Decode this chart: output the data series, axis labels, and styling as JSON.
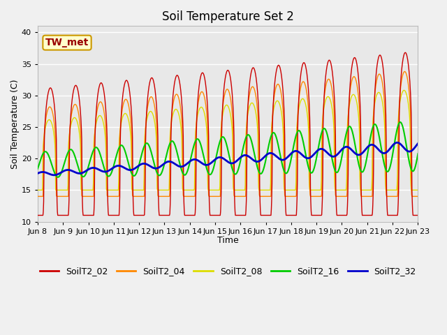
{
  "title": "Soil Temperature Set 2",
  "xlabel": "Time",
  "ylabel": "Soil Temperature (C)",
  "ylim": [
    10,
    41
  ],
  "yticks": [
    10,
    15,
    20,
    25,
    30,
    35,
    40
  ],
  "background_color": "#f0f0f0",
  "plot_bg_color": "#e8e8e8",
  "series_colors": {
    "SoilT2_02": "#cc0000",
    "SoilT2_04": "#ff8800",
    "SoilT2_08": "#dddd00",
    "SoilT2_16": "#00cc00",
    "SoilT2_32": "#0000cc"
  },
  "annotation_text": "TW_met",
  "annotation_bg": "#ffffcc",
  "annotation_border": "#cc9900",
  "annotation_text_color": "#990000",
  "x_tick_labels": [
    "Jun 8",
    "Jun 9",
    "Jun 10",
    "Jun 11",
    "Jun 12",
    "Jun 13",
    "Jun 14",
    "Jun 15",
    "Jun 16",
    "Jun 17",
    "Jun 18",
    "Jun 19",
    "Jun 20",
    "Jun 21",
    "Jun 22",
    "Jun 23"
  ],
  "title_fontsize": 12,
  "axis_label_fontsize": 9,
  "tick_fontsize": 8,
  "legend_fontsize": 9
}
